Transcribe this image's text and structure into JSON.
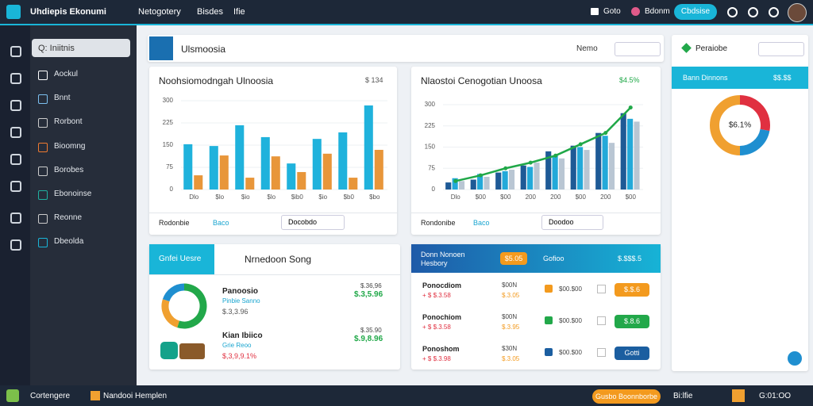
{
  "topbar": {
    "brand": "Uhdiepis Ekonumi",
    "nav": [
      "Netogotery",
      "Bisdes",
      "Ifie"
    ],
    "links": [
      "Goto",
      "Bdonm"
    ],
    "button": "Cbdsise"
  },
  "search": "Q: Iniitnis",
  "menu": [
    "Aockul",
    "Bnnt",
    "Rorbont",
    "Bioomng",
    "Borobes",
    "Ebonoinse",
    "Reonne",
    "Dbeolda"
  ],
  "header": {
    "title": "Ulsmoosia",
    "right": "Nemo"
  },
  "chart1": {
    "type": "bar",
    "title": "Noohsiomodngah Ulnoosia",
    "badge": "$ 134",
    "ylim": [
      0,
      300
    ],
    "yticks": [
      0,
      75,
      150,
      225,
      300
    ],
    "categories": [
      "Dlo",
      "$lo",
      "$io",
      "$lo",
      "$ib0",
      "$io",
      "$b0",
      "$bo"
    ],
    "series": [
      {
        "color": "#1fb2dc",
        "values": [
          153,
          147,
          217,
          177,
          88,
          171,
          193,
          284
        ]
      },
      {
        "color": "#e8963a",
        "values": [
          48,
          115,
          40,
          112,
          59,
          121,
          40,
          134
        ]
      }
    ],
    "footer_label": "Rodonbie",
    "footer_link": "Baco",
    "dropdown": "Docobdo"
  },
  "chart2": {
    "type": "bar",
    "title": "Nlaostoi Cenogotian Unoosa",
    "badge": "$4.5%",
    "ylim": [
      0,
      300
    ],
    "yticks": [
      0,
      75,
      150,
      225,
      300
    ],
    "categories": [
      "Dlo",
      "$00",
      "$00",
      "200",
      "200",
      "$00",
      "200",
      "$00"
    ],
    "series": [
      {
        "color": "#1e5a96",
        "values": [
          25,
          35,
          60,
          85,
          135,
          155,
          200,
          270
        ]
      },
      {
        "color": "#23a9d9",
        "values": [
          40,
          55,
          65,
          80,
          120,
          150,
          190,
          250
        ]
      },
      {
        "color": "#b9c6d3",
        "values": [
          30,
          45,
          70,
          95,
          110,
          140,
          165,
          240
        ]
      }
    ],
    "line": {
      "color": "#20a848",
      "values": [
        30,
        50,
        75,
        95,
        120,
        160,
        200,
        290
      ]
    },
    "footer_label": "Rondonibe",
    "footer_link": "Baco",
    "dropdown": "Doodoo"
  },
  "side": {
    "title": "Peraiobe",
    "strip_label": "Bann Dinnons",
    "strip_value": "$$.$$",
    "donut": {
      "type": "pie",
      "center": "$6.1%",
      "values": [
        28,
        22,
        50
      ],
      "colors": [
        "#e03040",
        "#1f8fd0",
        "#f0a030"
      ]
    }
  },
  "panel3": {
    "tab": "Gnfei Uesre",
    "title": "Nrnedoon Song",
    "donut": {
      "type": "pie",
      "values": [
        55,
        25,
        20
      ],
      "colors": [
        "#22a84a",
        "#f0a030",
        "#1f8fd0"
      ]
    },
    "rows": [
      {
        "name": "Panoosio",
        "sub": "Pinbie Sanno",
        "amount": "$.3,3.96",
        "top": "$.36,96",
        "bottom": "$.3,5.96"
      },
      {
        "name": "Kian Ibiico",
        "sub": "Grie Reoo",
        "amount": "$,3,9,9.1%",
        "top": "$.35.90",
        "bottom": "$.9,8.96"
      }
    ]
  },
  "panel4": {
    "title": "Donn Nonoen Hesbory",
    "badge": "$5.05",
    "label": "Gofioo",
    "value": "$.$$$.5",
    "rows": [
      {
        "name": "Ponocdiom",
        "sub": "+ $ $.3.58",
        "mid": "$00N",
        "mid_sub": "$.3.05",
        "amount": "$00.$00",
        "button": "$.$.6",
        "color": "#f39a1e"
      },
      {
        "name": "Ponochiom",
        "sub": "+ $ $.3.58",
        "mid": "$00N",
        "mid_sub": "$.3.95",
        "amount": "$00.$00",
        "button": "$.8.6",
        "color": "#22a84a"
      },
      {
        "name": "Ponoshom",
        "sub": "+ $ $.3.98",
        "mid": "$30N",
        "mid_sub": "$.3.05",
        "amount": "$00.$00",
        "button": "Gotti",
        "color": "#1b5ea0"
      }
    ]
  },
  "bottombar": {
    "left": "Cortengere",
    "app": "Nandooi Hemplen",
    "button": "Gusbo Boonnborbe",
    "status": "Bi:lfie",
    "time": "G:01:OO"
  }
}
